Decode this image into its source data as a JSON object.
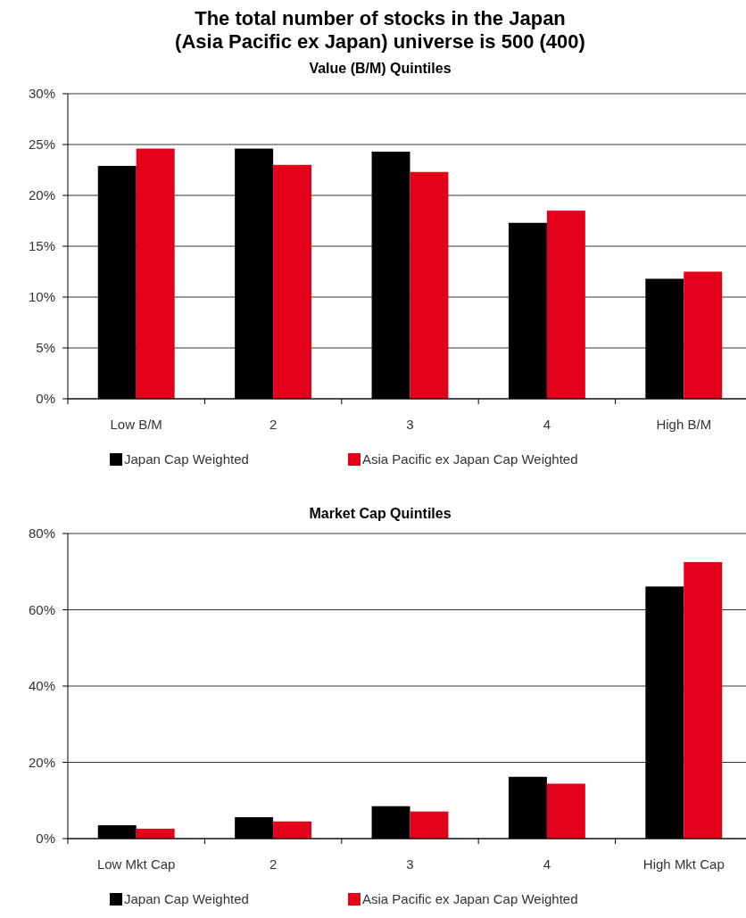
{
  "chart_data": [
    {
      "type": "bar",
      "title": "The total number of stocks in the Japan\n(Asia Pacific ex Japan) universe is 500 (400)",
      "subtitle": "Value (B/M) Quintiles",
      "categories": [
        "Low B/M",
        "2",
        "3",
        "4",
        "High B/M"
      ],
      "series": [
        {
          "name": "Japan Cap Weighted",
          "color": "#000000",
          "values": [
            22.9,
            24.6,
            24.3,
            17.3,
            11.8
          ]
        },
        {
          "name": "Asia Pacific ex Japan Cap Weighted",
          "color": "#e2001a",
          "values": [
            24.6,
            23.0,
            22.3,
            18.5,
            12.5
          ]
        }
      ],
      "ylim": [
        0,
        30
      ],
      "yticks": [
        {
          "value": 0,
          "label": "0%"
        },
        {
          "value": 5,
          "label": "5%"
        },
        {
          "value": 10,
          "label": "10%"
        },
        {
          "value": 15,
          "label": "15%"
        },
        {
          "value": 20,
          "label": "20%"
        },
        {
          "value": 25,
          "label": "25%"
        },
        {
          "value": 30,
          "label": "30%"
        }
      ],
      "grid": "y",
      "legend": "bottom"
    },
    {
      "type": "bar",
      "title": "Market Cap Quintiles",
      "categories": [
        "Low Mkt Cap",
        "2",
        "3",
        "4",
        "High Mkt Cap"
      ],
      "series": [
        {
          "name": "Japan Cap Weighted",
          "color": "#000000",
          "values": [
            3.5,
            5.6,
            8.5,
            16.2,
            66.1
          ]
        },
        {
          "name": "Asia Pacific ex Japan Cap Weighted",
          "color": "#e2001a",
          "values": [
            2.6,
            4.5,
            7.1,
            14.4,
            72.5
          ]
        }
      ],
      "ylim": [
        0,
        80
      ],
      "yticks": [
        {
          "value": 0,
          "label": "0%"
        },
        {
          "value": 20,
          "label": "20%"
        },
        {
          "value": 40,
          "label": "40%"
        },
        {
          "value": 60,
          "label": "60%"
        },
        {
          "value": 80,
          "label": "80%"
        }
      ],
      "grid": "y",
      "legend": "bottom"
    }
  ]
}
